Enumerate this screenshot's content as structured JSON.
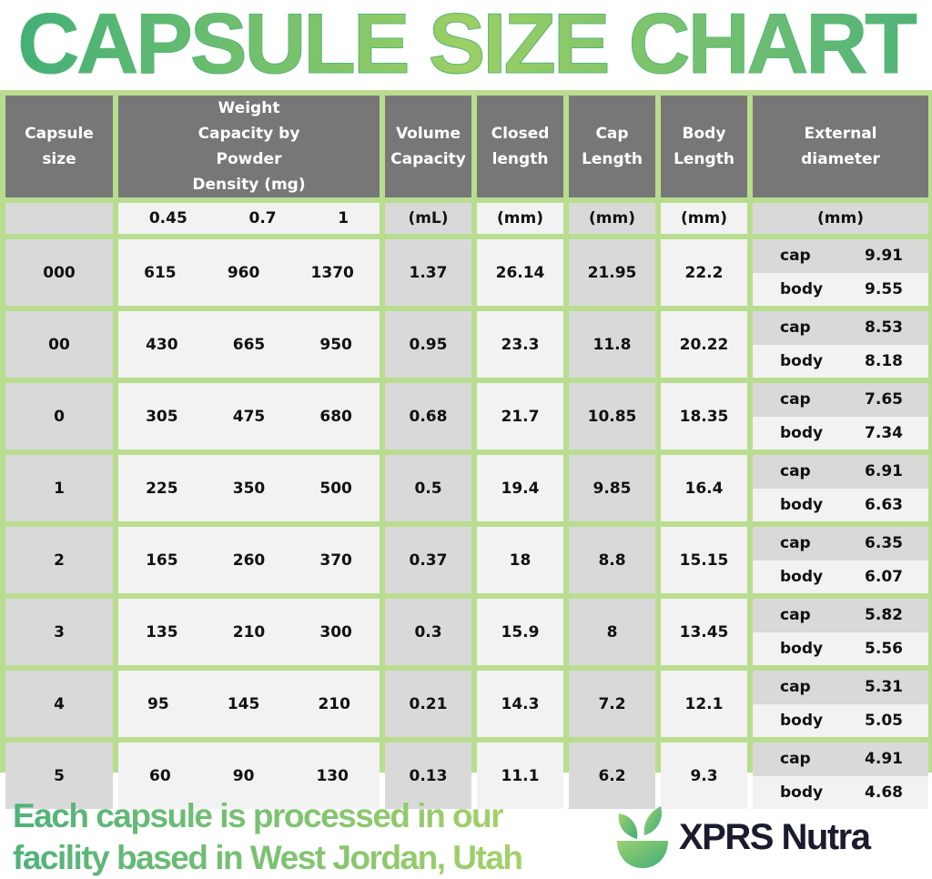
{
  "title": "CAPSULE SIZE CHART",
  "chart_data": {
    "type": "table",
    "title": "CAPSULE SIZE CHART",
    "headers": [
      "Capsule size",
      "Weight Capacity by Powder Density (mg)",
      "Volume Capacity",
      "Closed length",
      "Cap Length",
      "Body Length",
      "External diameter"
    ],
    "units": {
      "densities": [
        "0.45",
        "0.7",
        "1"
      ],
      "volume": "(mL)",
      "closed": "(mm)",
      "cap": "(mm)",
      "body": "(mm)",
      "ext": "(mm)"
    },
    "sub_labels": {
      "cap": "cap",
      "body": "body"
    },
    "rows": [
      {
        "size": "000",
        "w": [
          "615",
          "960",
          "1370"
        ],
        "vol": "1.37",
        "closed": "26.14",
        "cap": "21.95",
        "body": "22.2",
        "d_cap": "9.91",
        "d_body": "9.55"
      },
      {
        "size": "00",
        "w": [
          "430",
          "665",
          "950"
        ],
        "vol": "0.95",
        "closed": "23.3",
        "cap": "11.8",
        "body": "20.22",
        "d_cap": "8.53",
        "d_body": "8.18"
      },
      {
        "size": "0",
        "w": [
          "305",
          "475",
          "680"
        ],
        "vol": "0.68",
        "closed": "21.7",
        "cap": "10.85",
        "body": "18.35",
        "d_cap": "7.65",
        "d_body": "7.34"
      },
      {
        "size": "1",
        "w": [
          "225",
          "350",
          "500"
        ],
        "vol": "0.5",
        "closed": "19.4",
        "cap": "9.85",
        "body": "16.4",
        "d_cap": "6.91",
        "d_body": "6.63"
      },
      {
        "size": "2",
        "w": [
          "165",
          "260",
          "370"
        ],
        "vol": "0.37",
        "closed": "18",
        "cap": "8.8",
        "body": "15.15",
        "d_cap": "6.35",
        "d_body": "6.07"
      },
      {
        "size": "3",
        "w": [
          "135",
          "210",
          "300"
        ],
        "vol": "0.3",
        "closed": "15.9",
        "cap": "8",
        "body": "13.45",
        "d_cap": "5.82",
        "d_body": "5.56"
      },
      {
        "size": "4",
        "w": [
          "95",
          "145",
          "210"
        ],
        "vol": "0.21",
        "closed": "14.3",
        "cap": "7.2",
        "body": "12.1",
        "d_cap": "5.31",
        "d_body": "5.05"
      },
      {
        "size": "5",
        "w": [
          "60",
          "90",
          "130"
        ],
        "vol": "0.13",
        "closed": "11.1",
        "cap": "6.2",
        "body": "9.3",
        "d_cap": "4.91",
        "d_body": "4.68"
      }
    ]
  },
  "footer": {
    "line1": "Each capsule is processed in our",
    "line2": "facility based in West Jordan, Utah"
  },
  "brand": {
    "name": "XPRS Nutra",
    "logo_icon": "leaf-bowl-icon"
  },
  "colors": {
    "border_green": "#b9dd8e",
    "header_gray": "#777777",
    "dark_cell": "#d9d9d9",
    "light_cell": "#f2f2f2",
    "brand_dark": "#1b1b2e"
  }
}
